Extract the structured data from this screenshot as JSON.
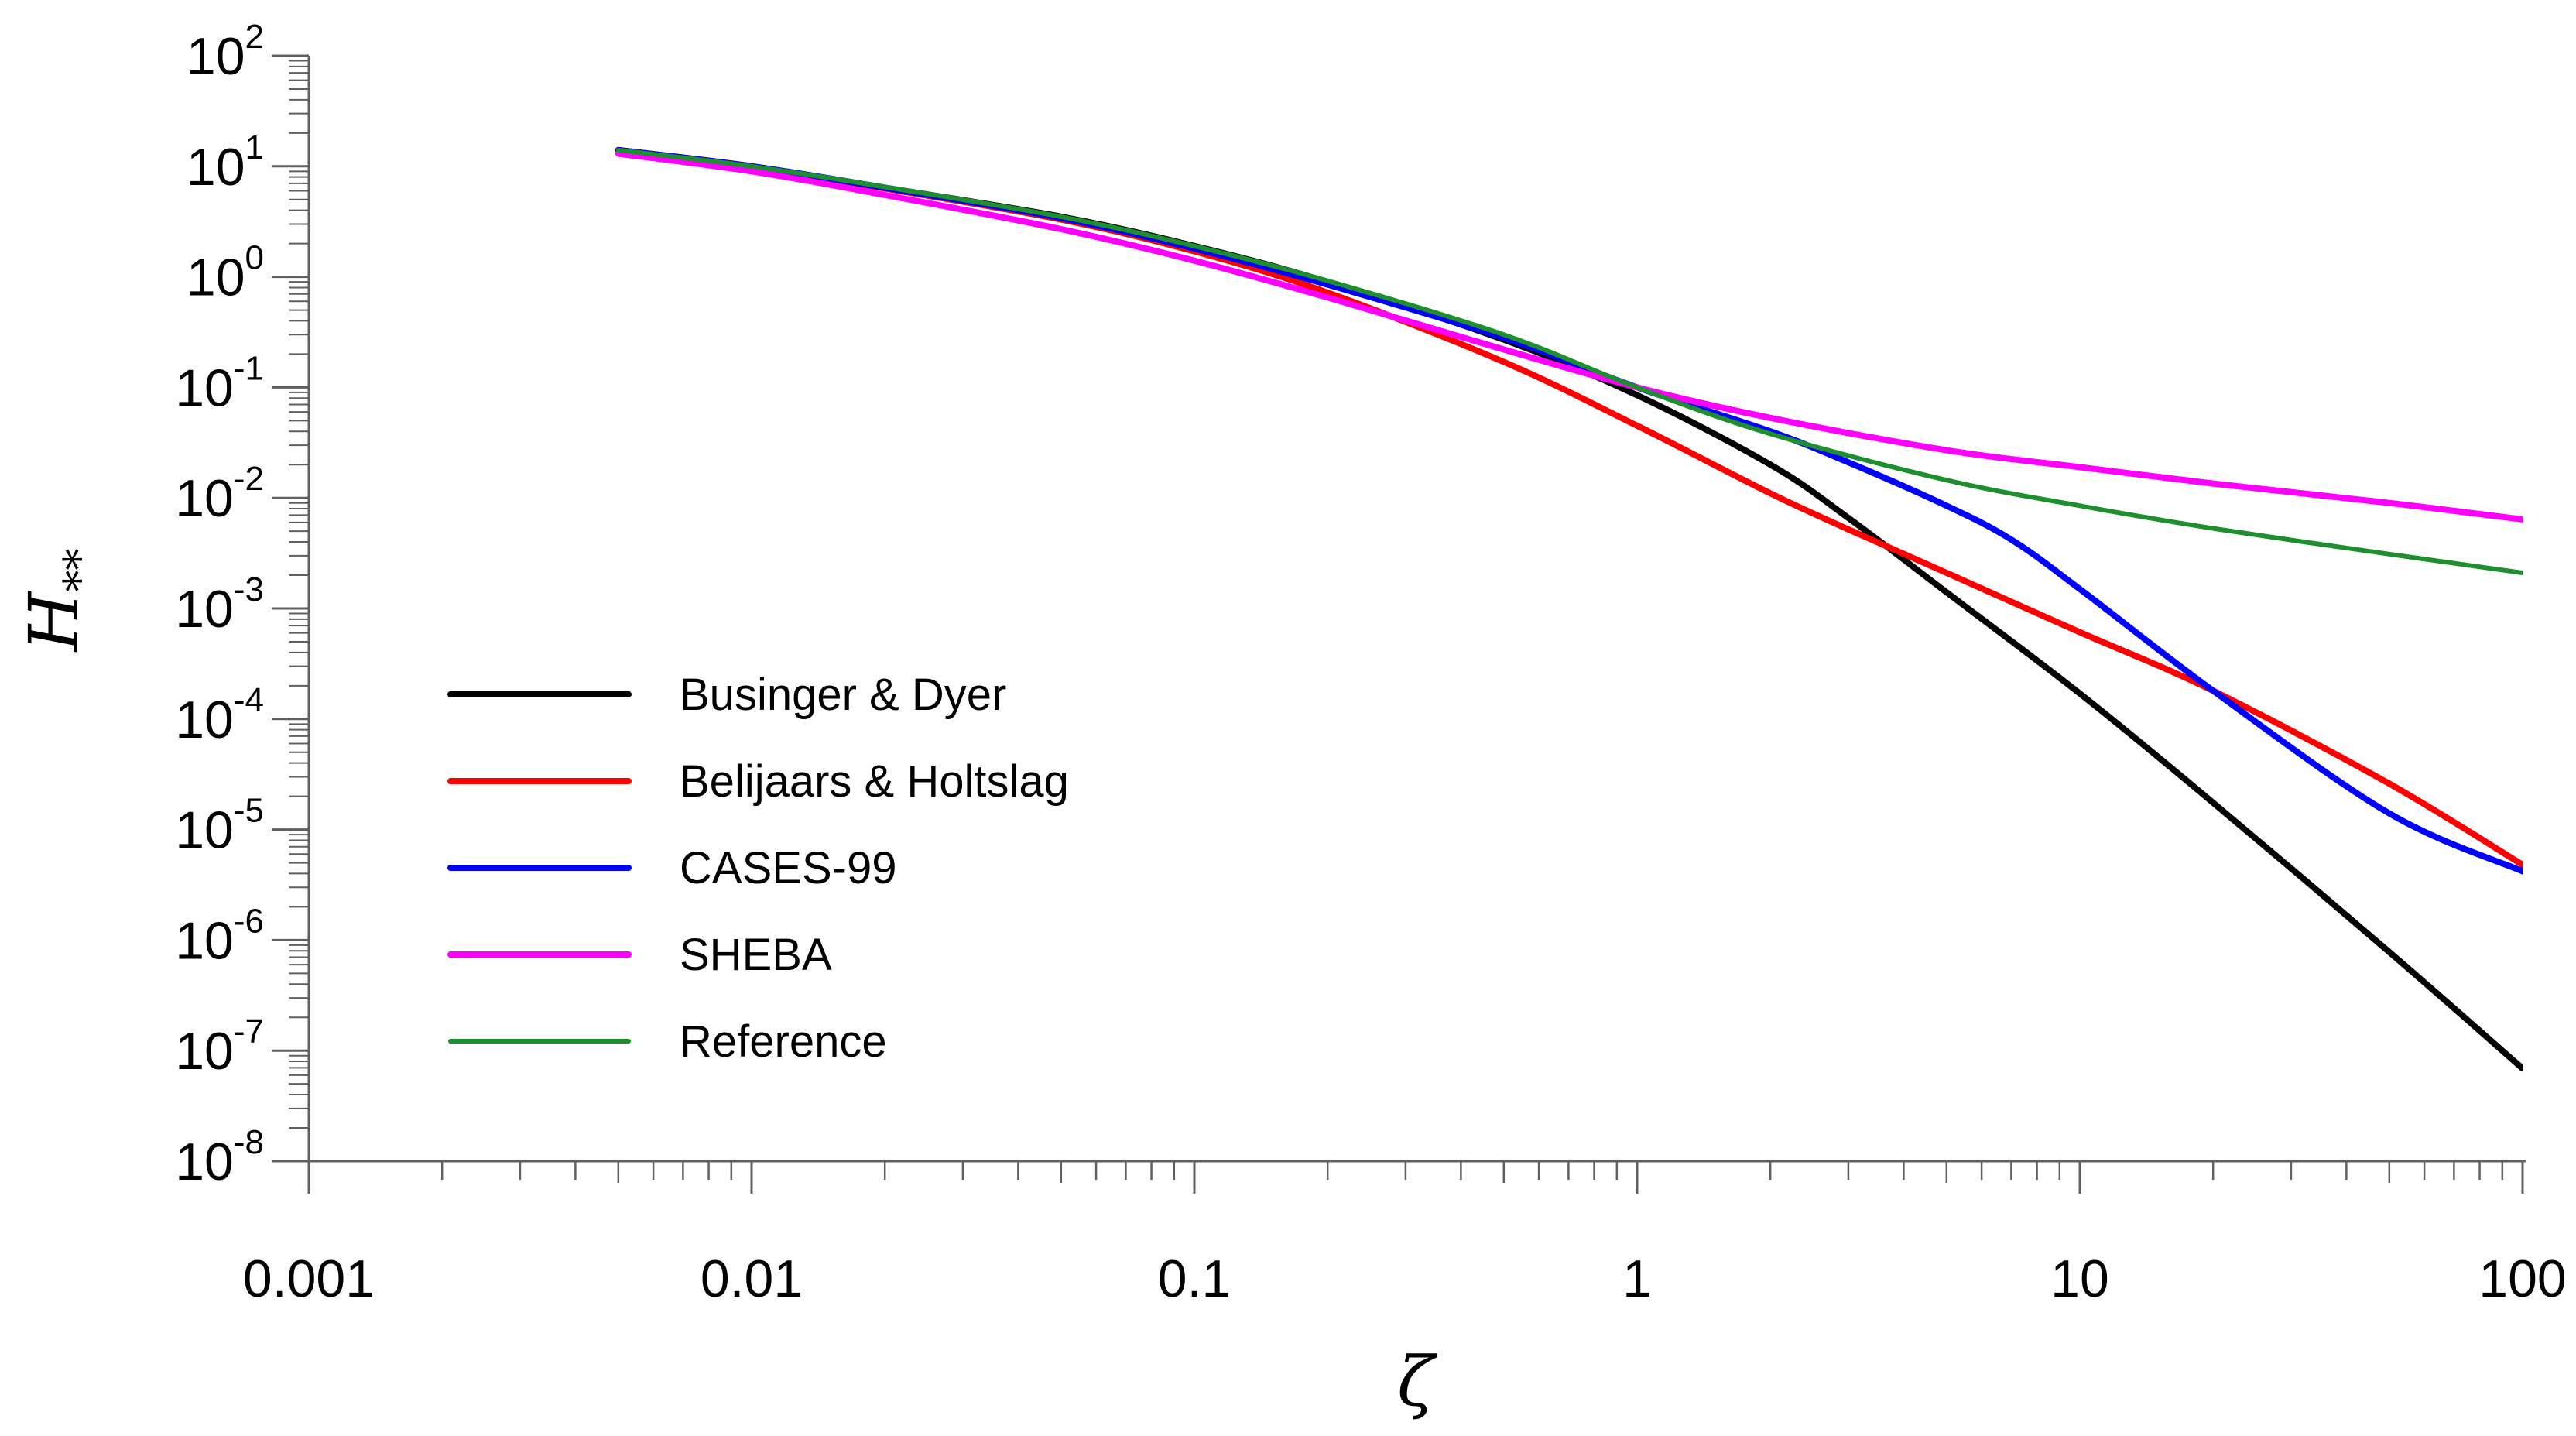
{
  "chart_data": {
    "type": "line",
    "title": "",
    "xlabel": "ζ",
    "ylabel": "H**",
    "ylabel_main": "H",
    "ylabel_sub": "**",
    "xscale": "log",
    "yscale": "log",
    "xlim": [
      0.001,
      100
    ],
    "ylim": [
      1e-08,
      100
    ],
    "grid": false,
    "legend_position": "lower-left",
    "x_ticks": [
      {
        "value": 0.001,
        "label": "0.001"
      },
      {
        "value": 0.01,
        "label": "0.01"
      },
      {
        "value": 0.1,
        "label": "0.1"
      },
      {
        "value": 1,
        "label": "1"
      },
      {
        "value": 10,
        "label": "10"
      },
      {
        "value": 100,
        "label": "100"
      }
    ],
    "y_ticks": [
      {
        "value": 100,
        "base": "10",
        "exp": "2"
      },
      {
        "value": 10,
        "base": "10",
        "exp": "1"
      },
      {
        "value": 1,
        "base": "10",
        "exp": "0"
      },
      {
        "value": 0.1,
        "base": "10",
        "exp": "-1"
      },
      {
        "value": 0.01,
        "base": "10",
        "exp": "-2"
      },
      {
        "value": 0.001,
        "base": "10",
        "exp": "-3"
      },
      {
        "value": 0.0001,
        "base": "10",
        "exp": "-4"
      },
      {
        "value": 1e-05,
        "base": "10",
        "exp": "-5"
      },
      {
        "value": 1e-06,
        "base": "10",
        "exp": "-6"
      },
      {
        "value": 1e-07,
        "base": "10",
        "exp": "-7"
      },
      {
        "value": 1e-08,
        "base": "10",
        "exp": "-8"
      }
    ],
    "series": [
      {
        "name": "Businger & Dyer",
        "color": "#000000",
        "x": [
          0.005,
          0.01,
          0.02,
          0.05,
          0.1,
          0.2,
          0.5,
          1,
          2,
          3,
          5,
          10,
          20,
          50,
          100
        ],
        "y": [
          14,
          10,
          6.4,
          3.5,
          1.9,
          0.9,
          0.27,
          0.085,
          0.02,
          0.0066,
          0.0014,
          0.00017,
          1.75e-05,
          7.8e-07,
          6.9e-08
        ]
      },
      {
        "name": "Belijaars & Holtslag",
        "color": "#ff0000",
        "x": [
          0.005,
          0.01,
          0.02,
          0.05,
          0.1,
          0.2,
          0.5,
          1,
          2,
          3,
          5,
          10,
          20,
          50,
          100
        ],
        "y": [
          14,
          10,
          6.3,
          3.3,
          1.7,
          0.72,
          0.17,
          0.045,
          0.011,
          0.0052,
          0.0021,
          0.00061,
          0.00018,
          2.6e-05,
          4.8e-06
        ]
      },
      {
        "name": "CASES-99",
        "color": "#0000ff",
        "x": [
          0.005,
          0.01,
          0.02,
          0.05,
          0.1,
          0.2,
          0.5,
          1,
          2,
          3,
          5,
          7,
          10,
          20,
          50,
          100
        ],
        "y": [
          14,
          10,
          6.4,
          3.4,
          1.8,
          0.85,
          0.28,
          0.1,
          0.04,
          0.021,
          0.0085,
          0.0042,
          0.0015,
          0.00018,
          1.4e-05,
          4.2e-06
        ]
      },
      {
        "name": "SHEBA",
        "color": "#ff00ff",
        "x": [
          0.005,
          0.01,
          0.02,
          0.05,
          0.1,
          0.2,
          0.5,
          1,
          2,
          5,
          10,
          20,
          50,
          100
        ],
        "y": [
          13,
          9,
          5.5,
          2.7,
          1.4,
          0.65,
          0.22,
          0.1,
          0.053,
          0.027,
          0.019,
          0.0135,
          0.009,
          0.0064
        ]
      },
      {
        "name": "Reference",
        "color": "#1e8f2e",
        "x": [
          0.005,
          0.01,
          0.02,
          0.05,
          0.1,
          0.2,
          0.5,
          1,
          2,
          5,
          10,
          20,
          50,
          100
        ],
        "y": [
          14,
          10,
          6.5,
          3.5,
          1.9,
          0.92,
          0.3,
          0.1,
          0.038,
          0.0145,
          0.0085,
          0.0053,
          0.0031,
          0.0021
        ]
      }
    ]
  }
}
